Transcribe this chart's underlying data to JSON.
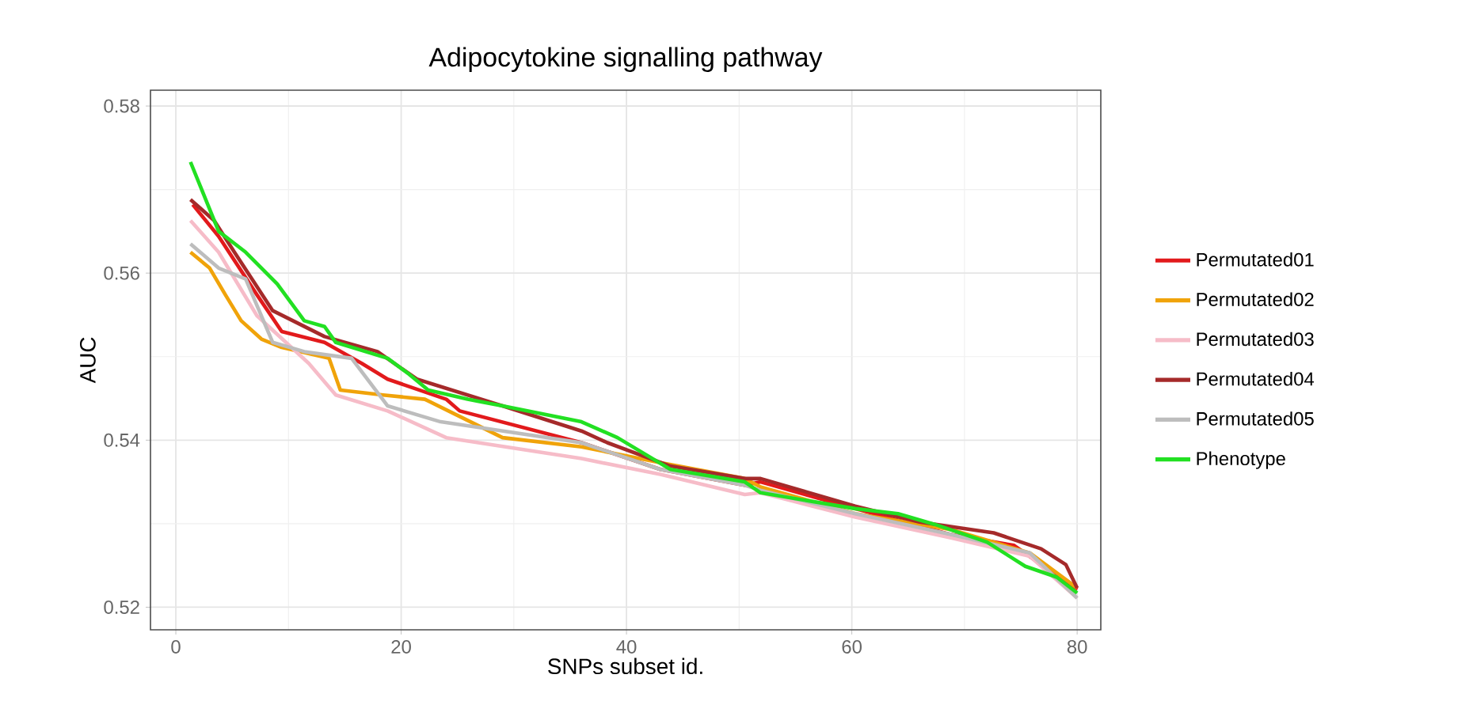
{
  "chart_data": {
    "type": "line",
    "title": "Adipocytokine signalling pathway",
    "xlabel": "SNPs subset id.",
    "ylabel": "AUC",
    "xlim": [
      -2.25,
      82.1
    ],
    "ylim": [
      0.5173,
      0.5819
    ],
    "xticks": [
      0,
      20,
      40,
      60,
      80
    ],
    "yticks": [
      0.52,
      0.54,
      0.56,
      0.58
    ],
    "grid": true,
    "legend": "right",
    "series": [
      {
        "name": "Permutated01",
        "color": "#e21a1c",
        "x": [
          1.5,
          3.8,
          7.2,
          9.4,
          13.2,
          16.5,
          18.8,
          24,
          25.2,
          36,
          43,
          50.5,
          51.9,
          60.3,
          68.8,
          74.4,
          80
        ],
        "values": [
          0.5682,
          0.5644,
          0.5574,
          0.553,
          0.5517,
          0.5492,
          0.5473,
          0.5449,
          0.5435,
          0.5397,
          0.5365,
          0.5346,
          0.535,
          0.5318,
          0.5287,
          0.5274,
          0.5221
        ]
      },
      {
        "name": "Permutated02",
        "color": "#f0a30a",
        "x": [
          1.3,
          3,
          4.4,
          5.8,
          7.6,
          9.4,
          13.6,
          14.6,
          18.4,
          22.1,
          24.2,
          29,
          36,
          43,
          50.5,
          51.9,
          60.3,
          68.8,
          75.8,
          80
        ],
        "values": [
          0.5625,
          0.5606,
          0.5574,
          0.5543,
          0.5521,
          0.5511,
          0.5498,
          0.546,
          0.5454,
          0.5449,
          0.5435,
          0.5403,
          0.5392,
          0.5373,
          0.5354,
          0.5344,
          0.5312,
          0.5293,
          0.5265,
          0.5223
        ]
      },
      {
        "name": "Permutated03",
        "color": "#f6bcc8",
        "x": [
          1.3,
          3.8,
          7.2,
          11.8,
          14.2,
          18.8,
          24,
          36,
          43,
          50.5,
          51.9,
          60.3,
          68.8,
          75.8,
          80
        ],
        "values": [
          0.5663,
          0.5625,
          0.5549,
          0.5492,
          0.5454,
          0.5435,
          0.5403,
          0.5378,
          0.5359,
          0.5335,
          0.5337,
          0.5308,
          0.5283,
          0.5261,
          0.5211
        ]
      },
      {
        "name": "Permutated04",
        "color": "#a52a2a",
        "x": [
          1.3,
          3.4,
          5.2,
          8.6,
          13.2,
          17.9,
          21.4,
          29,
          36,
          38.3,
          43.9,
          50.5,
          51.9,
          60.3,
          66,
          72.6,
          76.8,
          79,
          80
        ],
        "values": [
          0.5688,
          0.5663,
          0.5625,
          0.5555,
          0.5524,
          0.5506,
          0.5473,
          0.5441,
          0.5411,
          0.5397,
          0.5369,
          0.5354,
          0.5354,
          0.5321,
          0.5302,
          0.5289,
          0.527,
          0.5251,
          0.5223
        ]
      },
      {
        "name": "Permutated05",
        "color": "#bdbdbd",
        "x": [
          1.3,
          3.8,
          6.2,
          8.6,
          11.4,
          15.6,
          18.8,
          23.5,
          36,
          43,
          50.5,
          51.9,
          60.3,
          68.8,
          75.8,
          80
        ],
        "values": [
          0.5635,
          0.5606,
          0.5593,
          0.5517,
          0.5506,
          0.5498,
          0.5441,
          0.5422,
          0.5397,
          0.5365,
          0.5346,
          0.534,
          0.5312,
          0.5287,
          0.5265,
          0.5211
        ]
      },
      {
        "name": "Phenotype",
        "color": "#22e022",
        "x": [
          1.3,
          3.8,
          6.2,
          9,
          11.4,
          13.2,
          14.2,
          18.8,
          20.7,
          22.4,
          25.9,
          29,
          36,
          39.2,
          43.9,
          50.5,
          51.9,
          60.3,
          64.1,
          67.4,
          72,
          75.4,
          78.2,
          80
        ],
        "values": [
          0.5733,
          0.565,
          0.5625,
          0.5587,
          0.5543,
          0.5536,
          0.5517,
          0.5498,
          0.5479,
          0.546,
          0.5449,
          0.5441,
          0.5422,
          0.5403,
          0.5365,
          0.535,
          0.5337,
          0.5318,
          0.5312,
          0.5299,
          0.5278,
          0.5249,
          0.5236,
          0.5217
        ]
      }
    ]
  }
}
